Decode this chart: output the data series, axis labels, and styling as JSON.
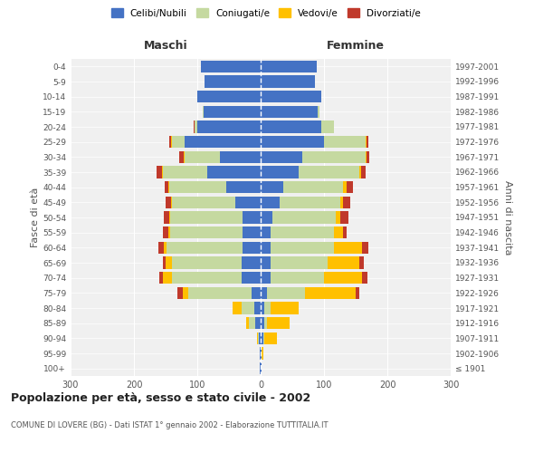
{
  "age_groups": [
    "100+",
    "95-99",
    "90-94",
    "85-89",
    "80-84",
    "75-79",
    "70-74",
    "65-69",
    "60-64",
    "55-59",
    "50-54",
    "45-49",
    "40-44",
    "35-39",
    "30-34",
    "25-29",
    "20-24",
    "15-19",
    "10-14",
    "5-9",
    "0-4"
  ],
  "birth_years": [
    "≤ 1901",
    "1902-1906",
    "1907-1911",
    "1912-1916",
    "1917-1921",
    "1922-1926",
    "1927-1931",
    "1932-1936",
    "1937-1941",
    "1942-1946",
    "1947-1951",
    "1952-1956",
    "1957-1961",
    "1962-1966",
    "1967-1971",
    "1972-1976",
    "1977-1981",
    "1982-1986",
    "1987-1991",
    "1992-1996",
    "1997-2001"
  ],
  "maschi": {
    "celibi": [
      1,
      2,
      3,
      8,
      10,
      15,
      30,
      30,
      28,
      28,
      28,
      40,
      55,
      85,
      65,
      120,
      100,
      90,
      100,
      88,
      95
    ],
    "coniugati": [
      0,
      0,
      2,
      10,
      20,
      100,
      110,
      110,
      120,
      115,
      115,
      100,
      90,
      70,
      55,
      20,
      5,
      1,
      0,
      0,
      0
    ],
    "vedovi": [
      0,
      0,
      1,
      5,
      15,
      8,
      15,
      10,
      5,
      3,
      2,
      2,
      1,
      1,
      1,
      1,
      0,
      0,
      0,
      0,
      0
    ],
    "divorziati": [
      0,
      0,
      0,
      0,
      0,
      8,
      5,
      5,
      8,
      8,
      8,
      8,
      5,
      8,
      8,
      3,
      1,
      0,
      0,
      0,
      0
    ]
  },
  "femmine": {
    "nubili": [
      1,
      2,
      4,
      5,
      5,
      10,
      15,
      15,
      15,
      15,
      18,
      30,
      35,
      60,
      65,
      100,
      95,
      90,
      95,
      85,
      88
    ],
    "coniugate": [
      0,
      0,
      2,
      5,
      10,
      60,
      85,
      90,
      100,
      100,
      100,
      95,
      95,
      95,
      100,
      65,
      20,
      3,
      0,
      0,
      0
    ],
    "vedove": [
      0,
      2,
      20,
      35,
      45,
      80,
      60,
      50,
      45,
      15,
      8,
      5,
      5,
      3,
      2,
      2,
      0,
      0,
      0,
      0,
      0
    ],
    "divorziate": [
      0,
      0,
      0,
      0,
      0,
      5,
      8,
      8,
      10,
      5,
      12,
      12,
      10,
      8,
      5,
      3,
      1,
      0,
      0,
      0,
      0
    ]
  },
  "colors": {
    "celibi": "#4472c4",
    "coniugati": "#c5d9a0",
    "vedovi": "#ffc000",
    "divorziati": "#c0392b"
  },
  "xlim": 300,
  "title": "Popolazione per età, sesso e stato civile - 2002",
  "subtitle": "COMUNE DI LOVERE (BG) - Dati ISTAT 1° gennaio 2002 - Elaborazione TUTTITALIA.IT",
  "ylabel_left": "Fasce di età",
  "ylabel_right": "Anni di nascita",
  "xlabel_left": "Maschi",
  "xlabel_right": "Femmine",
  "legend_labels": [
    "Celibi/Nubili",
    "Coniugati/e",
    "Vedovi/e",
    "Divorziati/e"
  ],
  "background_color": "#ffffff",
  "plot_bg_color": "#f0f0f0"
}
